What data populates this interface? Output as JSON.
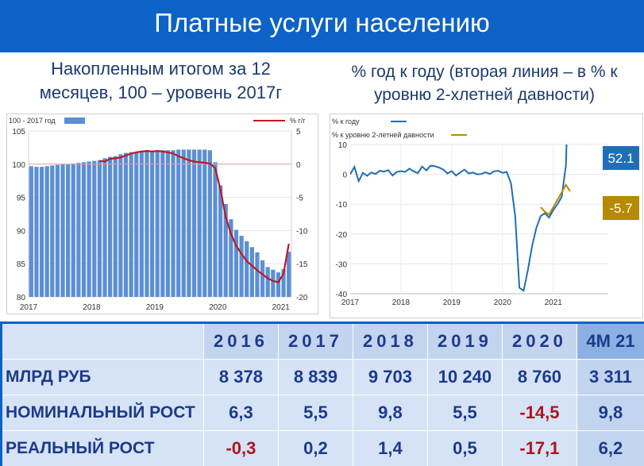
{
  "header": {
    "title": "Платные услуги населению"
  },
  "subtitles": {
    "left": [
      "Накопленным итогом за 12",
      "месяцев, 100 – уровень 2017г"
    ],
    "right": [
      "% год к году (вторая линия – в % к",
      "уровню 2-хлетней давности)"
    ]
  },
  "chart_data": [
    {
      "type": "bar",
      "title": "Накопленным итогом за 12 месяцев, 100 – уровень 2017г",
      "legend": {
        "bars": "100 - 2017 год",
        "line": "% г/г",
        "placement": "top"
      },
      "colors": {
        "bars": "#5b8fd6",
        "line": "#c0181f"
      },
      "x_ticks": [
        "2017",
        "2018",
        "2019",
        "2020",
        "2021"
      ],
      "y_left": {
        "range": [
          80,
          105
        ],
        "ticks": [
          80,
          85,
          90,
          95,
          100,
          105
        ]
      },
      "y_right": {
        "range": [
          -20,
          5
        ],
        "ticks": [
          -20,
          -15,
          -10,
          -5,
          0,
          5
        ]
      },
      "bars": [
        99.7,
        99.6,
        99.6,
        99.7,
        99.8,
        99.9,
        100.0,
        100.0,
        100.1,
        100.2,
        100.3,
        100.4,
        100.5,
        100.6,
        100.9,
        101.1,
        101.2,
        101.5,
        101.7,
        101.8,
        101.8,
        101.8,
        101.9,
        102.0,
        102.0,
        102.1,
        102.1,
        102.1,
        102.2,
        102.2,
        102.2,
        102.2,
        102.2,
        102.2,
        102.1,
        100.3,
        96.8,
        94.0,
        91.7,
        90.1,
        89.2,
        88.4,
        87.5,
        86.7,
        85.5,
        84.5,
        84.1,
        83.7,
        84.2,
        86.8
      ],
      "line": [
        null,
        null,
        null,
        null,
        null,
        null,
        null,
        null,
        null,
        null,
        null,
        null,
        null,
        0.5,
        0.4,
        0.8,
        0.9,
        1.0,
        1.3,
        1.6,
        1.8,
        1.9,
        2.0,
        1.9,
        2.0,
        1.9,
        1.8,
        1.6,
        1.2,
        0.9,
        0.6,
        0.4,
        0.3,
        0.2,
        0.1,
        -0.6,
        -3.8,
        -8.0,
        -10.5,
        -12.3,
        -13.5,
        -14.6,
        -15.3,
        -16.0,
        -16.6,
        -17.2,
        -17.6,
        -17.8,
        -16.5,
        -12.0
      ],
      "reference_line": 0
    },
    {
      "type": "line",
      "title": "% год к году (вторая линия – в % к уровню 2-хлетней давности)",
      "legend": {
        "series1": "% к году",
        "series2": "% к уровню 2-летней давности",
        "placement": "top-left"
      },
      "colors": {
        "series1": "#1f6fb5",
        "series2": "#b58900"
      },
      "x_ticks": [
        "2017",
        "2018",
        "2019",
        "2020",
        "2021"
      ],
      "y": {
        "range": [
          -40,
          10
        ],
        "ticks": [
          -40,
          -30,
          -20,
          -10,
          0,
          10
        ]
      },
      "series": [
        {
          "name": "% к году",
          "values": [
            0.0,
            2.5,
            -2.3,
            0.5,
            -0.5,
            0.6,
            0.1,
            1.2,
            0.9,
            1.4,
            -0.4,
            0.8,
            1.1,
            0.8,
            1.9,
            1.0,
            0.4,
            2.6,
            1.3,
            2.9,
            2.7,
            2.3,
            1.6,
            0.3,
            1.1,
            -0.4,
            0.6,
            1.6,
            0.3,
            0.6,
            0.0,
            0.1,
            0.7,
            0.1,
            1.0,
            1.2,
            0.5,
            0.8,
            -3.0,
            -14.0,
            -38.0,
            -39.0,
            -32.0,
            -24.0,
            -18.0,
            -14.0,
            -13.0,
            -14.5,
            -12.0,
            -10.0,
            -7.5,
            3.0,
            52.1
          ]
        },
        {
          "name": "% к уровню 2-летней давности",
          "start_index": 45,
          "values": [
            -11.0,
            -12.5,
            -13.5,
            -11.0,
            -8.5,
            -6.0,
            -3.5,
            -5.7
          ]
        }
      ],
      "end_labels": [
        "52.1",
        "-5.7"
      ]
    }
  ],
  "table": {
    "years": [
      "2016",
      "2017",
      "2018",
      "2019",
      "2020",
      "4M 21"
    ],
    "rows": [
      {
        "label": "МЛРД РУБ",
        "values": [
          "8 378",
          "8 839",
          "9 703",
          "10 240",
          "8 760",
          "3 311"
        ]
      },
      {
        "label": "НОМИНАЛЬНЫЙ РОСТ",
        "values": [
          "6,3",
          "5,5",
          "9,8",
          "5,5",
          "-14,5",
          "9,8"
        ]
      },
      {
        "label": "РЕАЛЬНЫЙ РОСТ",
        "values": [
          "-0,3",
          "0,2",
          "1,4",
          "0,5",
          "-17,1",
          "6,2"
        ]
      }
    ]
  }
}
